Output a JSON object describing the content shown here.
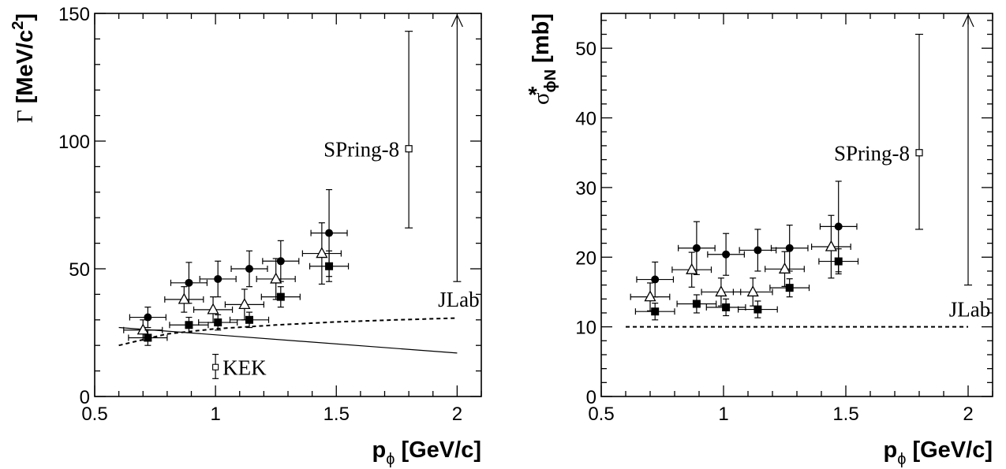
{
  "chart_data": [
    {
      "type": "scatter",
      "panel": "left",
      "ylabel_main": "Γ",
      "ylabel_rest": " [MeV/c",
      "ylabel_sup": "2",
      "ylabel_close": "]",
      "xlabel_main": "p",
      "xlabel_sub": "ϕ",
      "xlabel_rest": " [GeV/c]",
      "xlim": [
        0.5,
        2.1
      ],
      "ylim": [
        0,
        150
      ],
      "xticks": [
        0.5,
        1,
        1.5,
        2
      ],
      "xticklabels": [
        "0.5",
        "1",
        "1.5",
        "2"
      ],
      "yticks": [
        0,
        50,
        100,
        150
      ],
      "yticklabels": [
        "0",
        "50",
        "100",
        "150"
      ],
      "series": [
        {
          "marker": "circle",
          "points": [
            [
              0.72,
              31,
              4
            ],
            [
              0.89,
              44.5,
              8
            ],
            [
              1.01,
              46,
              7
            ],
            [
              1.14,
              50,
              7
            ],
            [
              1.27,
              53,
              8
            ],
            [
              1.47,
              64,
              17
            ]
          ],
          "xerr": 0.075
        },
        {
          "marker": "triangle",
          "points": [
            [
              0.7,
              26,
              4
            ],
            [
              0.87,
              38,
              5
            ],
            [
              0.99,
              34,
              5
            ],
            [
              1.12,
              36,
              6
            ],
            [
              1.25,
              46,
              8
            ],
            [
              1.44,
              56,
              12
            ]
          ],
          "xerr": 0.08
        },
        {
          "marker": "square",
          "points": [
            [
              0.72,
              23,
              3
            ],
            [
              0.89,
              28,
              3
            ],
            [
              1.01,
              29,
              3
            ],
            [
              1.14,
              30,
              3
            ],
            [
              1.27,
              39,
              4
            ],
            [
              1.47,
              51,
              6
            ]
          ],
          "xerr": 0.08
        }
      ],
      "curves": [
        {
          "style": "solid",
          "points": [
            [
              0.6,
              27
            ],
            [
              2.0,
              17
            ]
          ]
        },
        {
          "style": "dashed",
          "points": [
            [
              0.6,
              20
            ],
            [
              0.8,
              24.5
            ],
            [
              1.0,
              26.5
            ],
            [
              1.25,
              28
            ],
            [
              1.5,
              29.2
            ],
            [
              1.75,
              30
            ],
            [
              2.0,
              30.7
            ]
          ]
        }
      ],
      "references": [
        {
          "label": "SPring-8",
          "x": 1.8,
          "y": 97,
          "ylo": 66,
          "yhi": 143,
          "marker": "open-square"
        },
        {
          "label": "JLab",
          "x": 2.0,
          "ylo": 45,
          "yhi": 150,
          "marker": "arrow"
        },
        {
          "label": "KEK",
          "x": 1.0,
          "y": 11.5,
          "ylo": 7,
          "yhi": 16.5,
          "marker": "open-cross"
        }
      ]
    },
    {
      "type": "scatter",
      "panel": "right",
      "ylabel_main": "σ",
      "ylabel_sup": "*",
      "ylabel_sub": "ϕN",
      "ylabel_rest": " [mb]",
      "xlabel_main": "p",
      "xlabel_sub": "ϕ",
      "xlabel_rest": " [GeV/c]",
      "xlim": [
        0.5,
        2.1
      ],
      "ylim": [
        0,
        55
      ],
      "xticks": [
        0.5,
        1,
        1.5,
        2
      ],
      "xticklabels": [
        "0.5",
        "1",
        "1.5",
        "2"
      ],
      "yticks": [
        0,
        10,
        20,
        30,
        40,
        50
      ],
      "yticklabels": [
        "0",
        "10",
        "20",
        "30",
        "40",
        "50"
      ],
      "series": [
        {
          "marker": "circle",
          "points": [
            [
              0.72,
              16.8,
              2.5
            ],
            [
              0.89,
              21.3,
              3.8
            ],
            [
              1.01,
              20.4,
              3
            ],
            [
              1.14,
              21,
              3
            ],
            [
              1.27,
              21.3,
              3.3
            ],
            [
              1.47,
              24.4,
              6.5
            ]
          ],
          "xerr": 0.075
        },
        {
          "marker": "triangle",
          "points": [
            [
              0.7,
              14.3,
              2
            ],
            [
              0.87,
              18.2,
              2.5
            ],
            [
              0.99,
              15,
              2
            ],
            [
              1.12,
              15,
              2
            ],
            [
              1.25,
              18.3,
              2.5
            ],
            [
              1.44,
              21.5,
              4.5
            ]
          ],
          "xerr": 0.08
        },
        {
          "marker": "square",
          "points": [
            [
              0.72,
              12.2,
              1.2
            ],
            [
              0.89,
              13.3,
              1.3
            ],
            [
              1.01,
              12.8,
              1.2
            ],
            [
              1.14,
              12.5,
              1.2
            ],
            [
              1.27,
              15.6,
              1.3
            ],
            [
              1.47,
              19.4,
              1.8
            ]
          ],
          "xerr": 0.08
        }
      ],
      "curves": [
        {
          "style": "dashed",
          "points": [
            [
              0.6,
              10
            ],
            [
              2.0,
              10
            ]
          ]
        }
      ],
      "references": [
        {
          "label": "SPring-8",
          "x": 1.8,
          "y": 35,
          "ylo": 24,
          "yhi": 52,
          "marker": "open-square"
        },
        {
          "label": "JLab",
          "x": 2.0,
          "ylo": 16,
          "yhi": 55,
          "marker": "arrow"
        }
      ]
    }
  ]
}
